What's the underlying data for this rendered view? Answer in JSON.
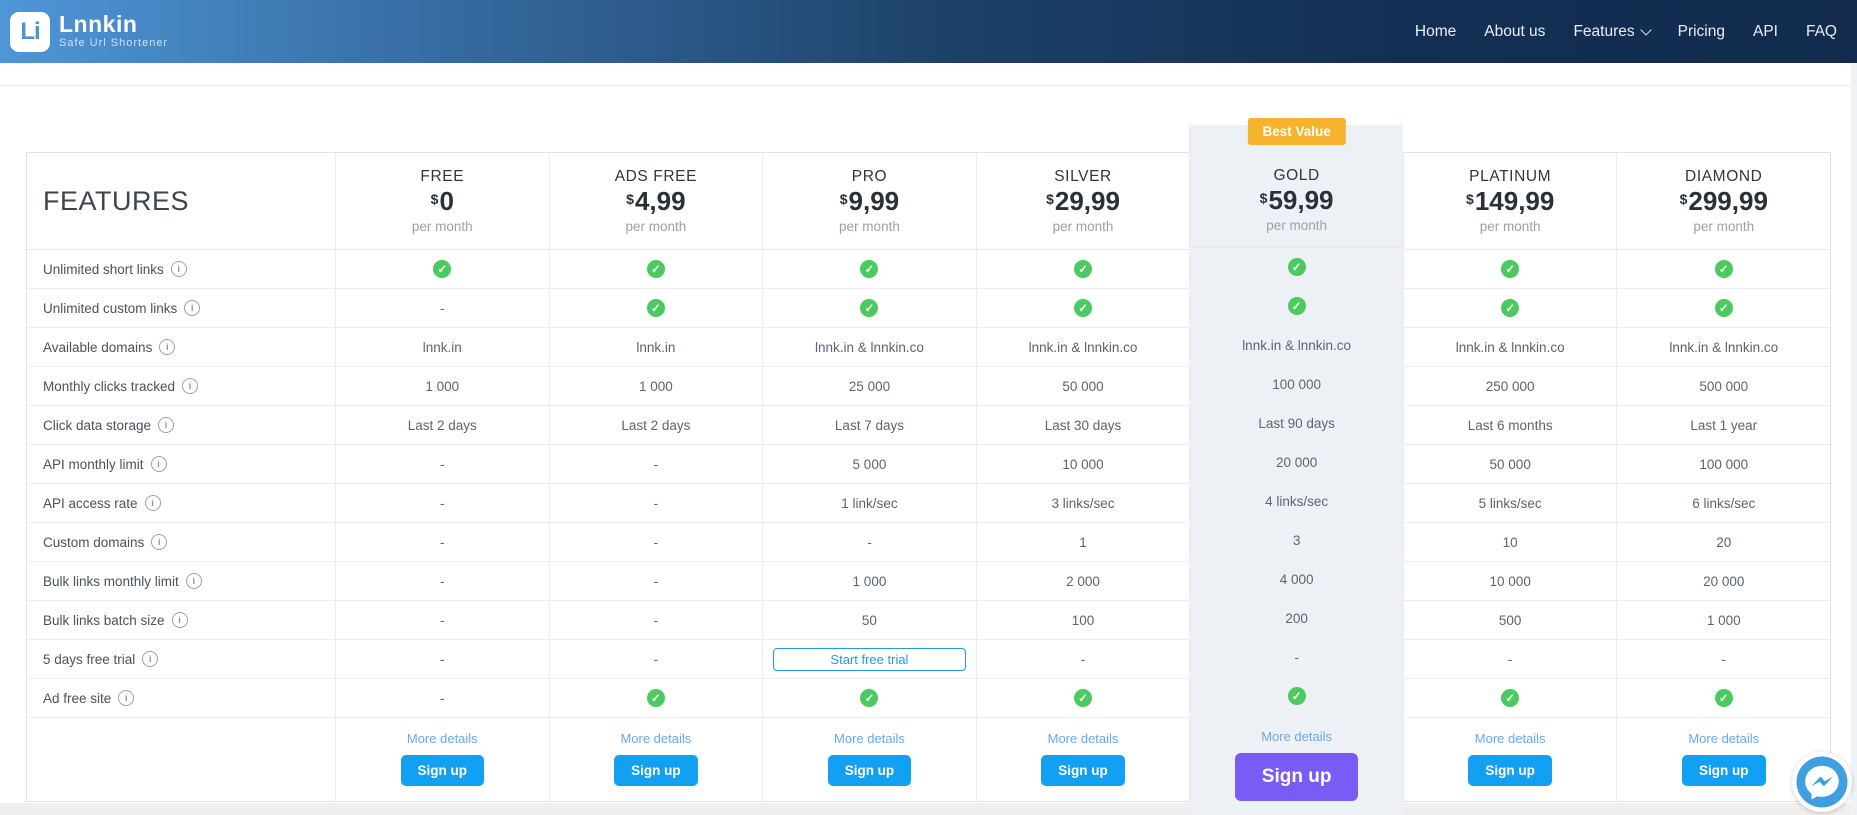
{
  "brand": {
    "name": "Lnnkin",
    "tagline": "Safe Url Shortener",
    "logo_monogram": "Li"
  },
  "nav": {
    "items": [
      {
        "label": "Home"
      },
      {
        "label": "About us"
      },
      {
        "label": "Features",
        "has_dropdown": true
      },
      {
        "label": "Pricing"
      },
      {
        "label": "API"
      },
      {
        "label": "FAQ"
      }
    ]
  },
  "table": {
    "features_heading": "FEATURES",
    "badge": "Best Value",
    "more_details_label": "More details",
    "signup_label": "Sign up",
    "trial_button_label": "Start free trial",
    "features": [
      "Unlimited short links",
      "Unlimited custom links",
      "Available domains",
      "Monthly clicks tracked",
      "Click data storage",
      "API monthly limit",
      "API access rate",
      "Custom domains",
      "Bulk links monthly limit",
      "Bulk links batch size",
      "5 days free trial",
      "Ad free site"
    ],
    "plans": [
      {
        "name": "FREE",
        "currency": "$",
        "price": "0",
        "period": "per month",
        "best_value": false,
        "values": [
          "check",
          "-",
          "lnnk.in",
          "1 000",
          "Last 2 days",
          "-",
          "-",
          "-",
          "-",
          "-",
          "-",
          "-"
        ]
      },
      {
        "name": "ADS FREE",
        "currency": "$",
        "price": "4,99",
        "period": "per month",
        "best_value": false,
        "values": [
          "check",
          "check",
          "lnnk.in",
          "1 000",
          "Last 2 days",
          "-",
          "-",
          "-",
          "-",
          "-",
          "-",
          "check"
        ]
      },
      {
        "name": "PRO",
        "currency": "$",
        "price": "9,99",
        "period": "per month",
        "best_value": false,
        "values": [
          "check",
          "check",
          "lnnk.in & lnnkin.co",
          "25 000",
          "Last 7 days",
          "5 000",
          "1 link/sec",
          "-",
          "1 000",
          "50",
          "trial",
          "check"
        ]
      },
      {
        "name": "SILVER",
        "currency": "$",
        "price": "29,99",
        "period": "per month",
        "best_value": false,
        "values": [
          "check",
          "check",
          "lnnk.in & lnnkin.co",
          "50 000",
          "Last 30 days",
          "10 000",
          "3 links/sec",
          "1",
          "2 000",
          "100",
          "-",
          "check"
        ]
      },
      {
        "name": "GOLD",
        "currency": "$",
        "price": "59,99",
        "period": "per month",
        "best_value": true,
        "values": [
          "check",
          "check",
          "lnnk.in & lnnkin.co",
          "100 000",
          "Last 90 days",
          "20 000",
          "4 links/sec",
          "3",
          "4 000",
          "200",
          "-",
          "check"
        ]
      },
      {
        "name": "PLATINUM",
        "currency": "$",
        "price": "149,99",
        "period": "per month",
        "best_value": false,
        "values": [
          "check",
          "check",
          "lnnk.in & lnnkin.co",
          "250 000",
          "Last 6 months",
          "50 000",
          "5 links/sec",
          "10",
          "10 000",
          "500",
          "-",
          "check"
        ]
      },
      {
        "name": "DIAMOND",
        "currency": "$",
        "price": "299,99",
        "period": "per month",
        "best_value": false,
        "values": [
          "check",
          "check",
          "lnnk.in & lnnkin.co",
          "500 000",
          "Last 1 year",
          "100 000",
          "6 links/sec",
          "20",
          "20 000",
          "1 000",
          "-",
          "check"
        ]
      }
    ]
  },
  "colors": {
    "navbar_gradient_start": "#4e96d8",
    "navbar_gradient_end": "#122b4e",
    "signup_blue": "#12a0f2",
    "signup_purple": "#7a5bf5",
    "badge_orange": "#f5b32f",
    "check_green": "#4bcb5f",
    "trial_border_blue": "#1e9ce8",
    "more_details_blue": "#68a9e8",
    "highlight_column_bg": "#edf1f5",
    "messenger_blue": "#3f9fe0"
  },
  "chat_widget": {
    "icon": "messenger-icon"
  }
}
